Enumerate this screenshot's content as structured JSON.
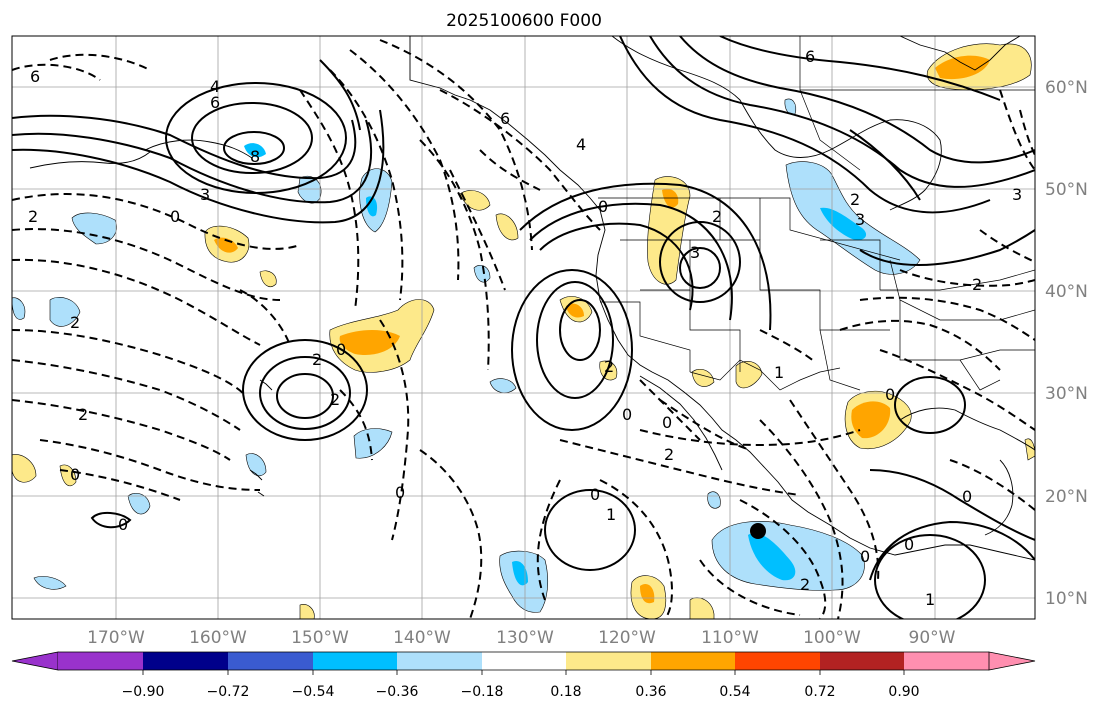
{
  "title": "2025100600 F000",
  "colors": {
    "background": "#ffffff",
    "grid": "#a0a0a0",
    "coastline": "#000000",
    "axis_label": "#808080",
    "marker": "#000000"
  },
  "longitude_labels": [
    "170°W",
    "160°W",
    "150°W",
    "140°W",
    "130°W",
    "120°W",
    "110°W",
    "100°W",
    "90°W"
  ],
  "latitude_labels": [
    "60°N",
    "50°N",
    "40°N",
    "30°N",
    "20°N",
    "10°N"
  ],
  "colorbar": {
    "extend": "both",
    "colors": [
      "#9932cc",
      "#00008b",
      "#3a5bd0",
      "#00bfff",
      "#aee0fb",
      "#ffffff",
      "#fde98a",
      "#ffa500",
      "#ff4500",
      "#b22222",
      "#ff8fb0"
    ],
    "tick_labels": [
      "−0.90",
      "−0.72",
      "−0.54",
      "−0.36",
      "−0.18",
      "0.18",
      "0.36",
      "0.54",
      "0.72",
      "0.90"
    ]
  },
  "contour_labels": [
    "6",
    "4",
    "6",
    "8",
    "3",
    "0",
    "2",
    "6",
    "4",
    "0",
    "2",
    "2",
    "3",
    "6",
    "3",
    "2",
    "2",
    "3",
    "0",
    "2",
    "2",
    "0",
    "0",
    "2",
    "0",
    "2",
    "1",
    "0",
    "0",
    "0",
    "2",
    "0",
    "0",
    "1",
    "2",
    "0",
    "0",
    "1"
  ],
  "marker": {
    "name": "location-marker"
  }
}
